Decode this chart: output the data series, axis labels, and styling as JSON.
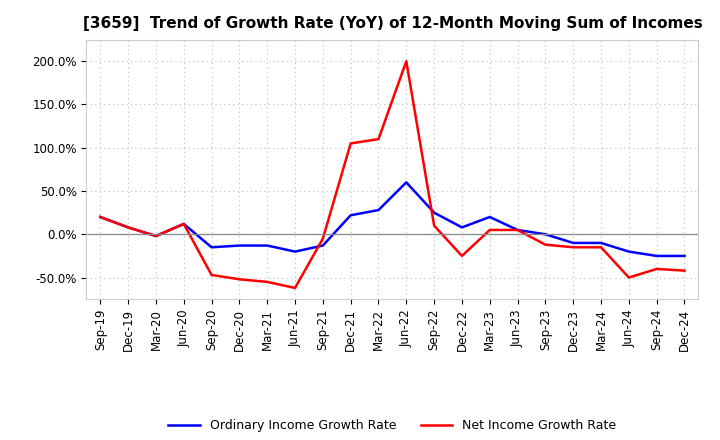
{
  "title": "[3659]  Trend of Growth Rate (YoY) of 12-Month Moving Sum of Incomes",
  "x_labels": [
    "Sep-19",
    "Dec-19",
    "Mar-20",
    "Jun-20",
    "Sep-20",
    "Dec-20",
    "Mar-21",
    "Jun-21",
    "Sep-21",
    "Dec-21",
    "Mar-22",
    "Jun-22",
    "Sep-22",
    "Dec-22",
    "Mar-23",
    "Jun-23",
    "Sep-23",
    "Dec-23",
    "Mar-24",
    "Jun-24",
    "Sep-24",
    "Dec-24"
  ],
  "ordinary_income": [
    20,
    8,
    -2,
    12,
    -15,
    -13,
    -13,
    -20,
    -13,
    22,
    28,
    60,
    25,
    8,
    20,
    5,
    0,
    -10,
    -10,
    -20,
    -25,
    -25
  ],
  "net_income": [
    20,
    8,
    -2,
    12,
    -47,
    -52,
    -55,
    -62,
    -5,
    105,
    110,
    200,
    10,
    -25,
    5,
    5,
    -12,
    -15,
    -15,
    -50,
    -40,
    -42
  ],
  "ordinary_color": "#0000ff",
  "net_color": "#ff0000",
  "ylim": [
    -75,
    225
  ],
  "yticks": [
    -50,
    0,
    50,
    100,
    150,
    200
  ],
  "bg_color": "#ffffff",
  "plot_bg_color": "#ffffff",
  "grid_color": "#bbbbbb",
  "title_fontsize": 11,
  "tick_fontsize": 8.5,
  "legend_fontsize": 9
}
